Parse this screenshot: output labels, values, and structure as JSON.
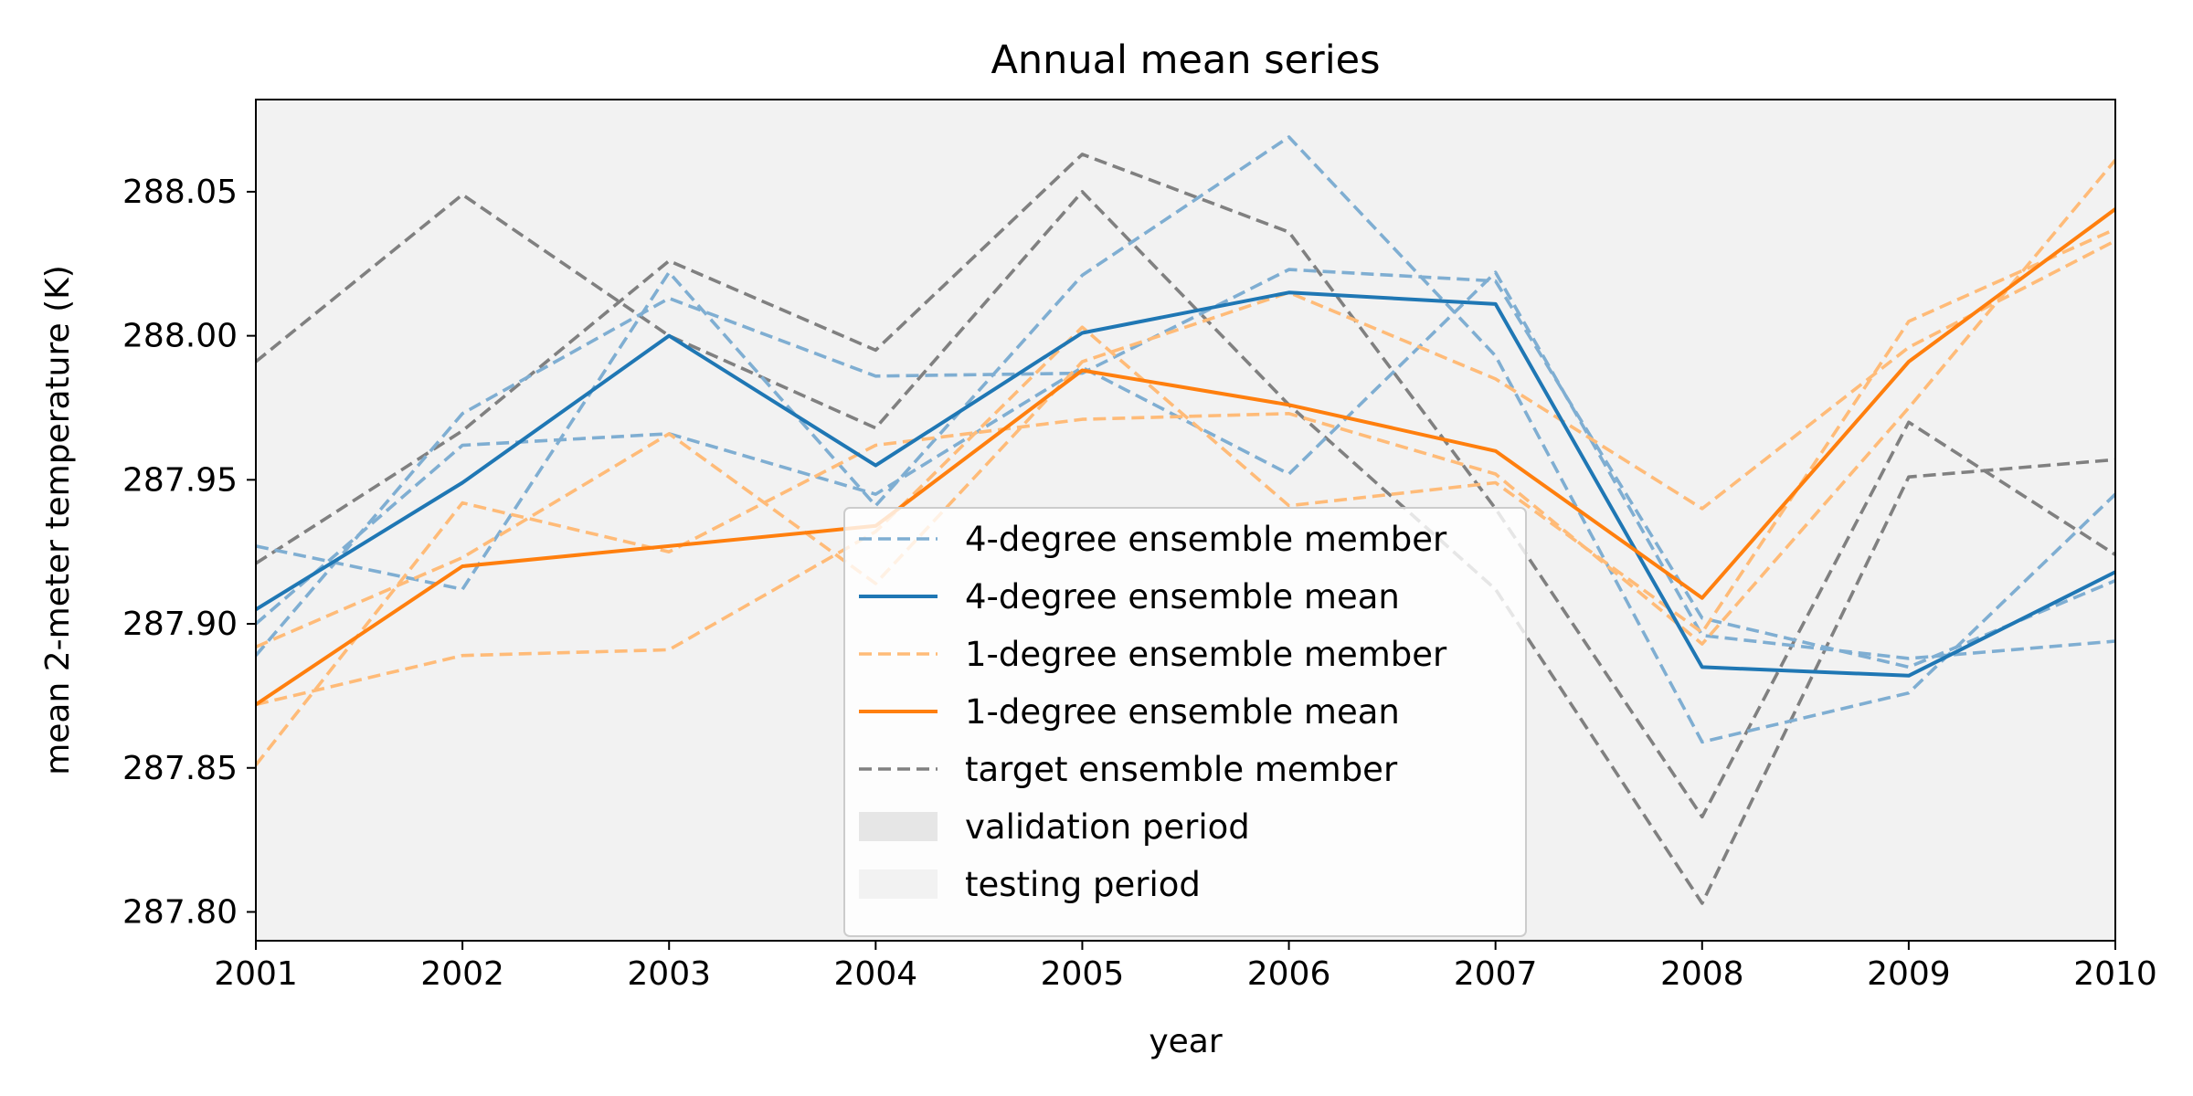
{
  "chart_data": {
    "type": "line",
    "title": "Annual mean series",
    "xlabel": "year",
    "ylabel": "mean 2-meter temperature (K)",
    "xlim": [
      2001,
      2010
    ],
    "ylim": [
      287.79,
      288.082
    ],
    "x": [
      2001,
      2002,
      2003,
      2004,
      2005,
      2006,
      2007,
      2008,
      2009,
      2010
    ],
    "x_ticks": [
      "2001",
      "2002",
      "2003",
      "2004",
      "2005",
      "2006",
      "2007",
      "2008",
      "2009",
      "2010"
    ],
    "y_ticks": [
      287.8,
      287.85,
      287.9,
      287.95,
      288.0,
      288.05
    ],
    "y_tick_labels": [
      "287.80",
      "287.85",
      "287.90",
      "287.95",
      "288.00",
      "288.05"
    ],
    "grid": false,
    "legend_placement": "lower-center",
    "background_color": "#f2f2f2",
    "legend": [
      {
        "label": "4-degree ensemble member",
        "style": "dashed",
        "color": "#7faed2"
      },
      {
        "label": "4-degree ensemble mean",
        "style": "solid",
        "color": "#1f77b4"
      },
      {
        "label": "1-degree ensemble member",
        "style": "dashed",
        "color": "#ffbb78"
      },
      {
        "label": "1-degree ensemble mean",
        "style": "solid",
        "color": "#ff7f0e"
      },
      {
        "label": "target ensemble member",
        "style": "dashed",
        "color": "#808080"
      },
      {
        "label": "validation period",
        "style": "patch",
        "color": "#e6e6e6"
      },
      {
        "label": "testing period",
        "style": "patch",
        "color": "#f2f2f2"
      }
    ],
    "series": [
      {
        "group": "target-member",
        "color": "#808080",
        "style": "dashed",
        "values": [
          287.991,
          288.049,
          288.0,
          287.968,
          288.05,
          287.976,
          287.912,
          287.803,
          287.951,
          287.957
        ]
      },
      {
        "group": "target-member",
        "color": "#808080",
        "style": "dashed",
        "values": [
          287.921,
          287.967,
          288.026,
          287.995,
          288.063,
          288.036,
          287.94,
          287.833,
          287.97,
          287.924
        ]
      },
      {
        "group": "4deg-member",
        "color": "#7faed2",
        "style": "dashed",
        "values": [
          287.927,
          287.912,
          288.022,
          287.941,
          288.021,
          288.069,
          287.993,
          287.859,
          287.876,
          287.945
        ]
      },
      {
        "group": "4deg-member",
        "color": "#7faed2",
        "style": "dashed",
        "values": [
          287.9,
          287.962,
          287.966,
          287.945,
          287.989,
          287.952,
          288.022,
          287.896,
          287.888,
          287.894
        ]
      },
      {
        "group": "4deg-member",
        "color": "#7faed2",
        "style": "dashed",
        "values": [
          287.889,
          287.973,
          288.013,
          287.986,
          287.987,
          288.023,
          288.019,
          287.902,
          287.885,
          287.915
        ]
      },
      {
        "group": "1deg-member",
        "color": "#ffbb78",
        "style": "dashed",
        "values": [
          287.851,
          287.942,
          287.925,
          287.962,
          287.971,
          287.973,
          287.952,
          287.893,
          287.975,
          288.061
        ]
      },
      {
        "group": "1deg-member",
        "color": "#ffbb78",
        "style": "dashed",
        "values": [
          287.872,
          287.889,
          287.891,
          287.932,
          288.003,
          287.941,
          287.949,
          287.897,
          288.005,
          288.037
        ]
      },
      {
        "group": "1deg-member",
        "color": "#ffbb78",
        "style": "dashed",
        "values": [
          287.892,
          287.923,
          287.966,
          287.914,
          287.991,
          288.015,
          287.985,
          287.94,
          287.996,
          288.033
        ]
      },
      {
        "group": "4deg-mean",
        "color": "#1f77b4",
        "style": "solid",
        "values": [
          287.905,
          287.949,
          288.0,
          287.955,
          288.001,
          288.015,
          288.011,
          287.885,
          287.882,
          287.918
        ]
      },
      {
        "group": "1deg-mean",
        "color": "#ff7f0e",
        "style": "solid",
        "values": [
          287.872,
          287.92,
          287.927,
          287.934,
          287.988,
          287.976,
          287.96,
          287.909,
          287.991,
          288.044
        ]
      }
    ]
  }
}
